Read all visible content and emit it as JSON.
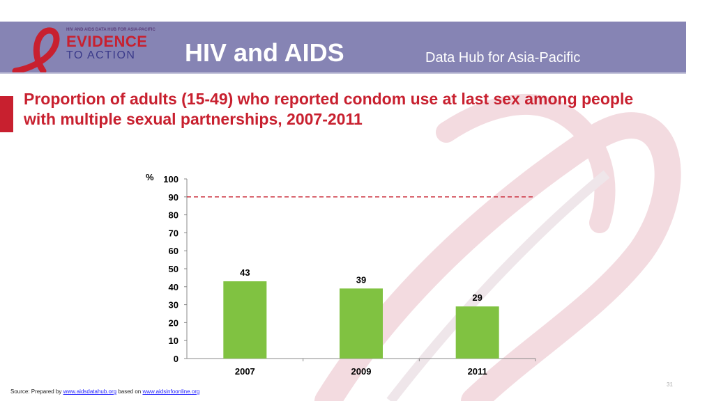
{
  "header": {
    "logo_small": "HIV AND AIDS DATA HUB FOR ASIA-PACIFIC",
    "logo_evidence": "EVIDENCE",
    "logo_toaction": "TO ACTION",
    "title": "HIV and AIDS",
    "subtitle": "Data Hub for Asia-Pacific"
  },
  "chart_title": "Proportion of adults (15-49) who reported condom use at last sex among people with multiple sexual partnerships, 2007-2011",
  "chart_data": {
    "type": "bar",
    "title": "Proportion of adults (15-49) who reported condom use at last sex among people with multiple sexual partnerships, 2007-2011",
    "xlabel": "",
    "ylabel": "%",
    "categories": [
      "2007",
      "2009",
      "2011"
    ],
    "values": [
      43,
      39,
      29
    ],
    "ylim": [
      0,
      100
    ],
    "yticks": [
      0,
      10,
      20,
      30,
      40,
      50,
      60,
      70,
      80,
      90,
      100
    ],
    "reference_line": 90,
    "grid": false,
    "bar_color": "#80c241",
    "reference_color": "#c8202f"
  },
  "footer": {
    "prefix": "Source: Prepared by ",
    "link1": "www.aidsdatahub.org",
    "middle": "  based on ",
    "link2": "www.aidsinfoonline.org"
  },
  "page_number": "31",
  "colors": {
    "header_bg": "#8684b4",
    "accent_red": "#c8202f",
    "bar_green": "#80c241"
  }
}
